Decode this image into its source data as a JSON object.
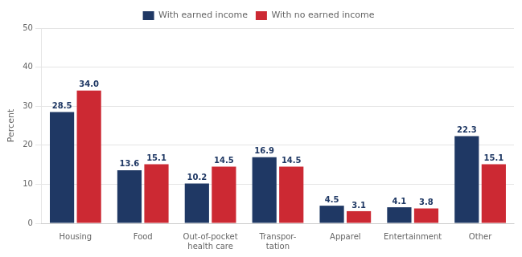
{
  "chart_data": {
    "type": "bar",
    "categories": [
      "Housing",
      "Food",
      "Out-of-pocket\nhealth care",
      "Transpor-\ntation",
      "Apparel",
      "Entertainment",
      "Other"
    ],
    "series": [
      {
        "name": "With earned income",
        "color": "#1F3864",
        "values": [
          28.5,
          13.6,
          10.2,
          16.9,
          4.5,
          4.1,
          22.3
        ],
        "value_labels": [
          "28.5",
          "13.6",
          "10.2",
          "16.9",
          "4.5",
          "4.1",
          "22.3"
        ]
      },
      {
        "name": "With no earned income",
        "color": "#CC2933",
        "values": [
          34.0,
          15.1,
          14.5,
          14.5,
          3.1,
          3.8,
          15.1
        ],
        "value_labels": [
          "34.0",
          "15.1",
          "14.5",
          "14.5",
          "3.1",
          "3.8",
          "15.1"
        ]
      }
    ],
    "ylabel": "Percent",
    "ylim": [
      0,
      50
    ],
    "yticks": [
      0,
      10,
      20,
      30,
      40,
      50
    ],
    "grid": true,
    "data_labels": true,
    "legend": "top"
  }
}
